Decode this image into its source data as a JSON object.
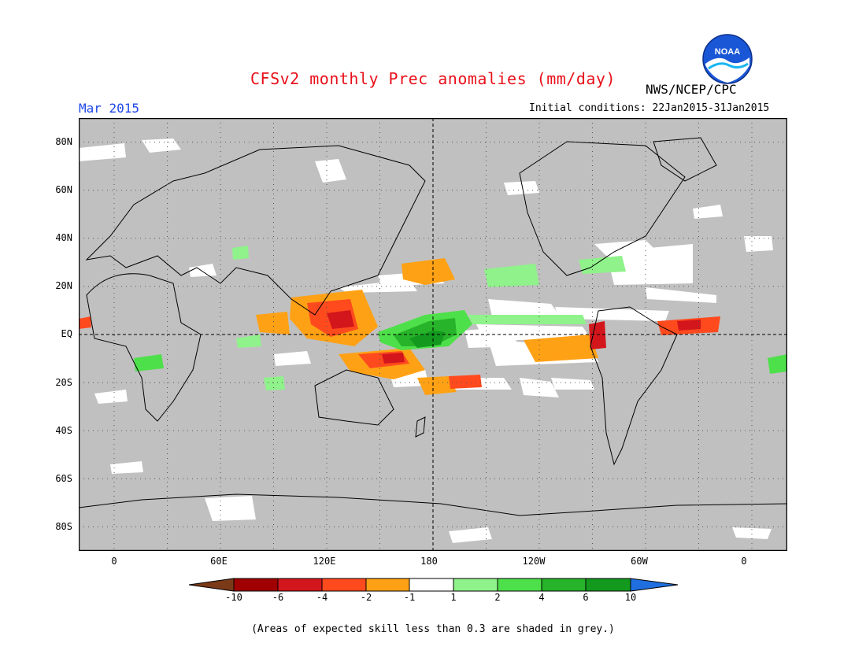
{
  "title": "CFSv2 monthly Prec anomalies (mm/day)",
  "organization": "NWS/NCEP/CPC",
  "logo_text": "NOAA",
  "valid_month": "Mar 2015",
  "initial_conditions": "Initial conditions: 22Jan2015-31Jan2015",
  "footnote": "(Areas of expected skill less than 0.3 are shaded in grey.)",
  "map": {
    "projection": "equirectangular",
    "lon_range": [
      -20,
      380
    ],
    "lat_range": [
      -90,
      90
    ],
    "land_color": "#c0c0c0",
    "dashed_lines": [
      "Equator",
      "180"
    ],
    "lat_labels": [
      "80N",
      "60N",
      "40N",
      "20N",
      "EQ",
      "20S",
      "40S",
      "60S",
      "80S"
    ],
    "lon_labels": [
      "0",
      "60E",
      "120E",
      "180",
      "120W",
      "60W",
      "0"
    ]
  },
  "colorbar": {
    "labels": [
      "-10",
      "-6",
      "-4",
      "-2",
      "-1",
      "1",
      "2",
      "4",
      "6",
      "10"
    ],
    "colors": [
      "#7b3a17",
      "#a00000",
      "#d3161b",
      "#ff4a1e",
      "#ffa114",
      "#ffffff",
      "#8ff28a",
      "#4ee04a",
      "#27b32a",
      "#139a1e",
      "#1f6fe0"
    ]
  },
  "colors": {
    "title": "#e8101a",
    "month": "#1f47e6",
    "grey_skill_mask": "#c0c0c0",
    "neutral": "#ffffff"
  }
}
